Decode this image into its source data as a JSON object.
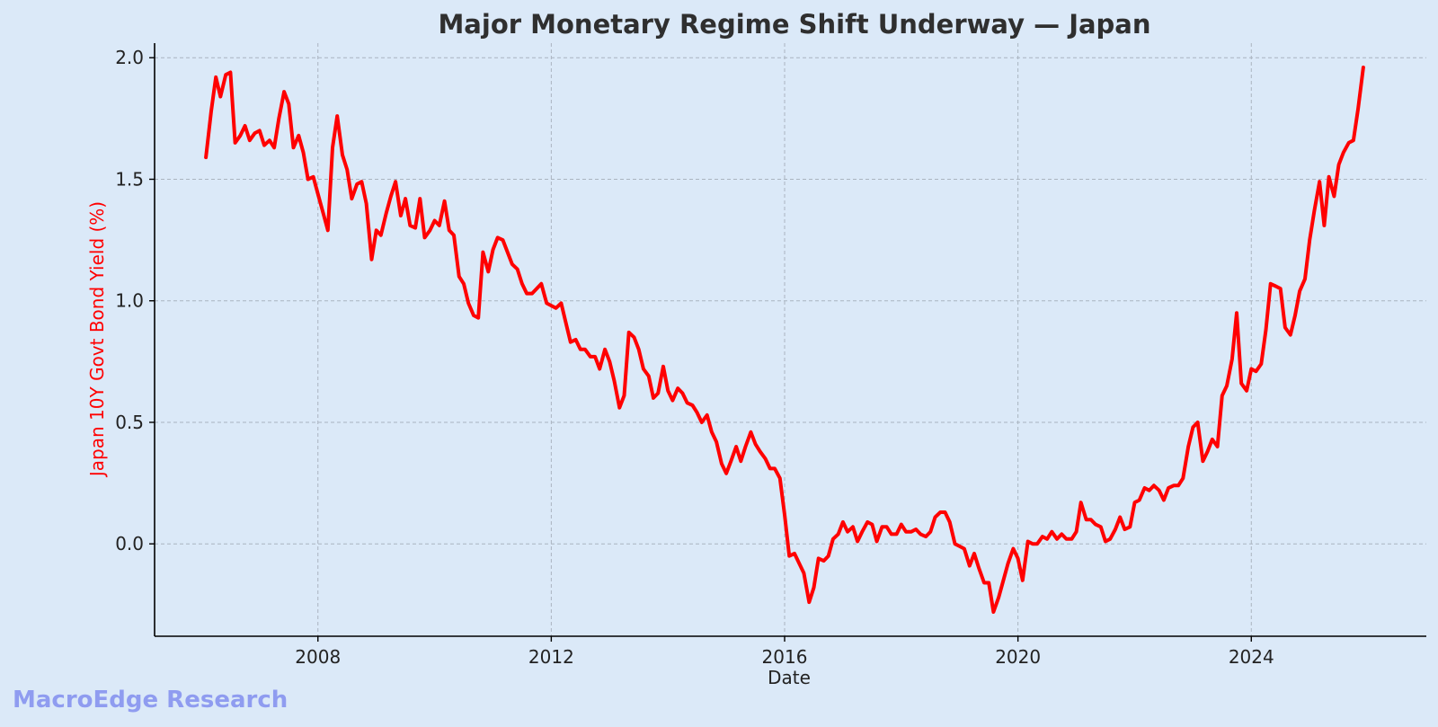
{
  "colors": {
    "background": "#dbe9f8",
    "line": "#ff0000",
    "ylabel": "#ff0000",
    "grid": "#aab4c0",
    "axis": "#000000",
    "watermark": "#8f9cf0"
  },
  "watermark": "MacroEdge Research",
  "chart_data": {
    "type": "line",
    "title": "Major Monetary Regime Shift Underway — Japan",
    "xlabel": "Date",
    "ylabel": "Japan 10Y Govt Bond Yield (%)",
    "xlim": [
      2005.2,
      2027.0
    ],
    "ylim": [
      -0.38,
      2.06
    ],
    "x_ticks": [
      2008,
      2012,
      2016,
      2020,
      2024
    ],
    "x_tick_labels": [
      "2008",
      "2012",
      "2016",
      "2020",
      "2024"
    ],
    "y_ticks": [
      0.0,
      0.5,
      1.0,
      1.5,
      2.0
    ],
    "y_tick_labels": [
      "0.0",
      "0.5",
      "1.0",
      "1.5",
      "2.0"
    ],
    "grid": true,
    "legend": "none",
    "series": [
      {
        "x": [
          2006.08,
          2006.17,
          2006.25,
          2006.33,
          2006.42,
          2006.5,
          2006.58,
          2006.67,
          2006.75,
          2006.83,
          2006.92,
          2007.0,
          2007.08,
          2007.17,
          2007.25,
          2007.33,
          2007.42,
          2007.5,
          2007.58,
          2007.67,
          2007.75,
          2007.83,
          2007.92,
          2008.0,
          2008.08,
          2008.17,
          2008.25,
          2008.33,
          2008.42,
          2008.5,
          2008.58,
          2008.67,
          2008.75,
          2008.83,
          2008.92,
          2009.0,
          2009.08,
          2009.17,
          2009.25,
          2009.33,
          2009.42,
          2009.5,
          2009.58,
          2009.67,
          2009.75,
          2009.83,
          2009.92,
          2010.0,
          2010.08,
          2010.17,
          2010.25,
          2010.33,
          2010.42,
          2010.5,
          2010.58,
          2010.67,
          2010.75,
          2010.83,
          2010.92,
          2011.0,
          2011.08,
          2011.17,
          2011.25,
          2011.33,
          2011.42,
          2011.5,
          2011.58,
          2011.67,
          2011.75,
          2011.83,
          2011.92,
          2012.0,
          2012.08,
          2012.17,
          2012.25,
          2012.33,
          2012.42,
          2012.5,
          2012.58,
          2012.67,
          2012.75,
          2012.83,
          2012.92,
          2013.0,
          2013.08,
          2013.17,
          2013.25,
          2013.33,
          2013.42,
          2013.5,
          2013.58,
          2013.67,
          2013.75,
          2013.83,
          2013.92,
          2014.0,
          2014.08,
          2014.17,
          2014.25,
          2014.33,
          2014.42,
          2014.5,
          2014.58,
          2014.67,
          2014.75,
          2014.83,
          2014.92,
          2015.0,
          2015.08,
          2015.17,
          2015.25,
          2015.33,
          2015.42,
          2015.5,
          2015.58,
          2015.67,
          2015.75,
          2015.83,
          2015.92,
          2016.0,
          2016.08,
          2016.17,
          2016.25,
          2016.33,
          2016.42,
          2016.5,
          2016.58,
          2016.67,
          2016.75,
          2016.83,
          2016.92,
          2017.0,
          2017.08,
          2017.17,
          2017.25,
          2017.33,
          2017.42,
          2017.5,
          2017.58,
          2017.67,
          2017.75,
          2017.83,
          2017.92,
          2018.0,
          2018.08,
          2018.17,
          2018.25,
          2018.33,
          2018.42,
          2018.5,
          2018.58,
          2018.67,
          2018.75,
          2018.83,
          2018.92,
          2019.0,
          2019.08,
          2019.17,
          2019.25,
          2019.33,
          2019.42,
          2019.5,
          2019.58,
          2019.67,
          2019.75,
          2019.83,
          2019.92,
          2020.0,
          2020.08,
          2020.17,
          2020.25,
          2020.33,
          2020.42,
          2020.5,
          2020.58,
          2020.67,
          2020.75,
          2020.83,
          2020.92,
          2021.0,
          2021.08,
          2021.17,
          2021.25,
          2021.33,
          2021.42,
          2021.5,
          2021.58,
          2021.67,
          2021.75,
          2021.83,
          2021.92,
          2022.0,
          2022.08,
          2022.17,
          2022.25,
          2022.33,
          2022.42,
          2022.5,
          2022.58,
          2022.67,
          2022.75,
          2022.83,
          2022.92,
          2023.0,
          2023.08,
          2023.17,
          2023.25,
          2023.33,
          2023.42,
          2023.5,
          2023.58,
          2023.67,
          2023.75,
          2023.83,
          2023.92,
          2024.0,
          2024.08,
          2024.17,
          2024.25,
          2024.33,
          2024.42,
          2024.5,
          2024.58,
          2024.67,
          2024.75,
          2024.83,
          2024.92,
          2025.0,
          2025.08,
          2025.17,
          2025.25,
          2025.33,
          2025.42,
          2025.5,
          2025.58,
          2025.67,
          2025.75,
          2025.83,
          2025.92
        ],
        "values": [
          1.59,
          1.78,
          1.92,
          1.84,
          1.93,
          1.94,
          1.65,
          1.68,
          1.72,
          1.66,
          1.69,
          1.7,
          1.64,
          1.66,
          1.63,
          1.75,
          1.86,
          1.81,
          1.63,
          1.68,
          1.61,
          1.5,
          1.51,
          1.44,
          1.37,
          1.29,
          1.63,
          1.76,
          1.6,
          1.54,
          1.42,
          1.48,
          1.49,
          1.4,
          1.17,
          1.29,
          1.27,
          1.36,
          1.43,
          1.49,
          1.35,
          1.42,
          1.31,
          1.3,
          1.42,
          1.26,
          1.29,
          1.33,
          1.31,
          1.41,
          1.29,
          1.27,
          1.1,
          1.07,
          0.99,
          0.94,
          0.93,
          1.2,
          1.12,
          1.21,
          1.26,
          1.25,
          1.2,
          1.15,
          1.13,
          1.07,
          1.03,
          1.03,
          1.05,
          1.07,
          0.99,
          0.98,
          0.97,
          0.99,
          0.91,
          0.83,
          0.84,
          0.8,
          0.8,
          0.77,
          0.77,
          0.72,
          0.8,
          0.75,
          0.67,
          0.56,
          0.61,
          0.87,
          0.85,
          0.8,
          0.72,
          0.69,
          0.6,
          0.62,
          0.73,
          0.63,
          0.59,
          0.64,
          0.62,
          0.58,
          0.57,
          0.54,
          0.5,
          0.53,
          0.46,
          0.42,
          0.33,
          0.29,
          0.34,
          0.4,
          0.34,
          0.4,
          0.46,
          0.41,
          0.38,
          0.35,
          0.31,
          0.31,
          0.27,
          0.12,
          -0.05,
          -0.04,
          -0.08,
          -0.12,
          -0.24,
          -0.18,
          -0.06,
          -0.07,
          -0.05,
          0.02,
          0.04,
          0.09,
          0.05,
          0.07,
          0.01,
          0.05,
          0.09,
          0.08,
          0.01,
          0.07,
          0.07,
          0.04,
          0.04,
          0.08,
          0.05,
          0.05,
          0.06,
          0.04,
          0.03,
          0.05,
          0.11,
          0.13,
          0.13,
          0.09,
          0.0,
          -0.01,
          -0.02,
          -0.09,
          -0.04,
          -0.1,
          -0.16,
          -0.16,
          -0.28,
          -0.22,
          -0.15,
          -0.08,
          -0.02,
          -0.06,
          -0.15,
          0.01,
          0.0,
          0.0,
          0.03,
          0.02,
          0.05,
          0.02,
          0.04,
          0.02,
          0.02,
          0.05,
          0.17,
          0.1,
          0.1,
          0.08,
          0.07,
          0.01,
          0.02,
          0.06,
          0.11,
          0.06,
          0.07,
          0.17,
          0.18,
          0.23,
          0.22,
          0.24,
          0.22,
          0.18,
          0.23,
          0.24,
          0.24,
          0.27,
          0.4,
          0.48,
          0.5,
          0.34,
          0.38,
          0.43,
          0.4,
          0.61,
          0.65,
          0.76,
          0.95,
          0.66,
          0.63,
          0.72,
          0.71,
          0.74,
          0.88,
          1.07,
          1.06,
          1.05,
          0.89,
          0.86,
          0.94,
          1.04,
          1.09,
          1.25,
          1.37,
          1.49,
          1.31,
          1.51,
          1.43,
          1.56,
          1.61,
          1.65,
          1.66,
          1.79,
          1.96
        ]
      }
    ]
  }
}
